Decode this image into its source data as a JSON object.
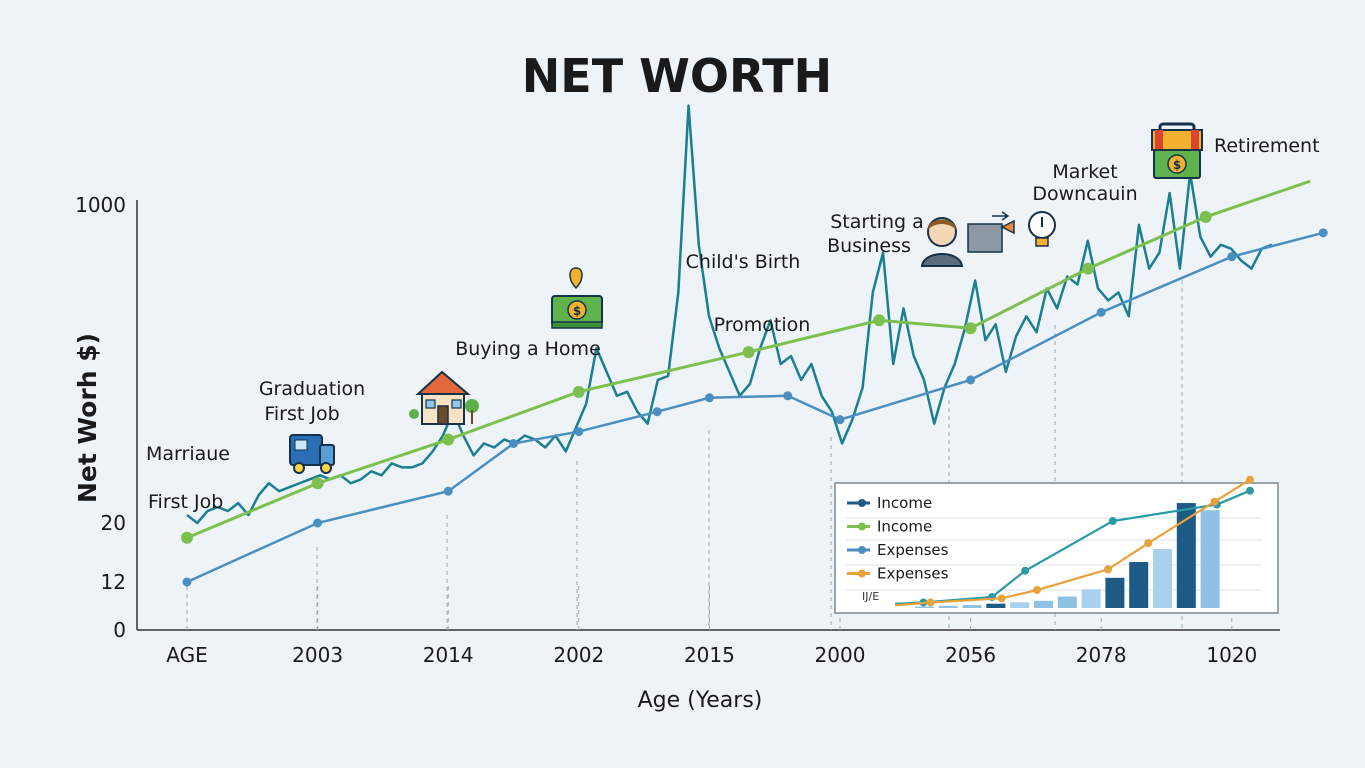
{
  "chart_data": {
    "type": "line",
    "title": "NET WORTH",
    "xlabel": "Age (Years)",
    "ylabel": "Net Worh  $)",
    "x_ticks": [
      "AGE",
      "2003",
      "2014",
      "2002",
      "2015",
      "2000",
      "2056",
      "2078",
      "1020"
    ],
    "y_ticks": [
      "0",
      "12",
      "20",
      "1000"
    ],
    "grid": false,
    "series": [
      {
        "name": "",
        "color": "#7cc04f",
        "marker": "circle",
        "values": [
          18.0,
          30.0,
          41.0,
          53.0,
          63.0,
          71.0,
          69.0,
          84.0,
          97.0,
          106.0
        ],
        "x_index": [
          0,
          1,
          2,
          3,
          4.3,
          5.3,
          6,
          6.9,
          7.8,
          8.6
        ]
      },
      {
        "name": "",
        "color": "#4a8fc0",
        "marker": "circle",
        "values": [
          12.0,
          20.0,
          28.0,
          40.0,
          43.0,
          48.0,
          51.5,
          52.0,
          46.0,
          56.0,
          73.0,
          87.0,
          93.0
        ],
        "x_index": [
          0,
          1,
          2,
          2.5,
          3,
          3.6,
          4,
          4.6,
          5,
          6,
          7,
          8,
          8.7
        ]
      },
      {
        "name": "",
        "color": "#1a7f92",
        "marker": "none",
        "values": [
          22,
          20,
          23,
          24,
          23,
          25,
          22,
          27,
          30,
          28,
          29,
          30,
          31,
          32,
          31,
          32,
          30,
          31,
          33,
          32,
          35,
          34,
          34,
          35,
          38,
          42,
          48,
          42,
          37,
          40,
          39,
          41,
          40,
          42,
          41,
          39,
          42,
          38,
          44,
          50,
          64,
          58,
          52,
          53,
          48,
          45,
          56,
          57,
          78,
          125,
          90,
          72,
          64,
          58,
          52,
          55,
          64,
          71,
          60,
          62,
          56,
          60,
          52,
          48,
          40,
          46,
          54,
          78,
          88,
          60,
          74,
          62,
          56,
          45,
          54,
          60,
          69,
          81,
          66,
          70,
          58,
          67,
          72,
          68,
          79,
          74,
          82,
          80,
          91,
          79,
          76,
          78,
          72,
          95,
          84,
          88,
          103,
          84,
          108,
          92,
          87,
          90,
          89,
          86,
          84,
          89,
          90
        ]
      }
    ],
    "inset": {
      "legend": [
        {
          "label": "Income",
          "color": "#1d5a86",
          "style": "line-dot"
        },
        {
          "label": "Income",
          "color": "#7cc04f",
          "style": "line-dot"
        },
        {
          "label": "Expenses",
          "color": "#4a8fc0",
          "style": "line-dot"
        },
        {
          "label": "Expenses",
          "color": "#e8a23c",
          "style": "line-dot"
        }
      ],
      "axis_text": "IJ/E",
      "bars": [
        1,
        1.5,
        2,
        3,
        4,
        5,
        8,
        13,
        21,
        32,
        41,
        73,
        68
      ],
      "bar_colors": [
        "#8ec1e3",
        "#8ec1e3",
        "#8ec1e3",
        "#1d5a86",
        "#a9d0ec",
        "#8ec1e3",
        "#8ec1e3",
        "#a9d0ec",
        "#1d5a86",
        "#1d5a86",
        "#a9d0ec",
        "#1d5a86",
        "#8ec1e3"
      ],
      "teal_line": [
        3,
        4,
        8,
        27,
        63,
        75,
        85
      ],
      "orange_line": [
        2,
        4,
        7,
        13,
        28,
        47,
        77,
        93
      ],
      "teal_x": [
        0,
        1.2,
        4.1,
        5.5,
        9.2,
        13.6,
        15.0
      ],
      "orange_x": [
        0,
        1.5,
        4.5,
        6.0,
        9.0,
        10.7,
        13.5,
        15.0
      ]
    },
    "annotations": [
      {
        "id": "marriage",
        "text": "Marriaue"
      },
      {
        "id": "first-job",
        "text": "First Job"
      },
      {
        "id": "graduation-1",
        "text": "Graduation"
      },
      {
        "id": "graduation-2",
        "text": "First Job"
      },
      {
        "id": "home",
        "text": "Buying a Home"
      },
      {
        "id": "child",
        "text": "Child's Birth"
      },
      {
        "id": "promotion",
        "text": "Promotion"
      },
      {
        "id": "business-1",
        "text": "Starting a"
      },
      {
        "id": "business-2",
        "text": "Business"
      },
      {
        "id": "market-1",
        "text": "Market"
      },
      {
        "id": "market-2",
        "text": "Downcauin"
      },
      {
        "id": "retirement",
        "text": "Retirement"
      }
    ]
  }
}
